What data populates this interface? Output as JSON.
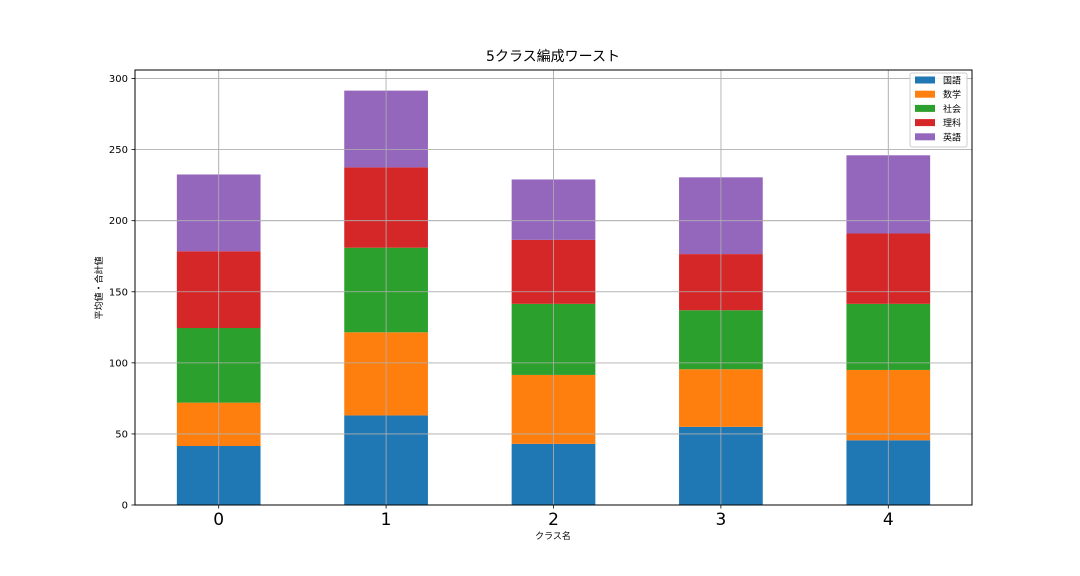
{
  "chart_data": {
    "type": "bar",
    "stacked": true,
    "title": "5クラス編成ワースト",
    "xlabel": "クラス名",
    "ylabel": "平均値・合計値",
    "categories": [
      "0",
      "1",
      "2",
      "3",
      "4"
    ],
    "ylim": [
      0,
      306
    ],
    "yticks": [
      0,
      50,
      100,
      150,
      200,
      250,
      300
    ],
    "grid": true,
    "legend_position": "top-right",
    "series": [
      {
        "name": "国語",
        "color": "#1f77b4",
        "values": [
          41.5,
          63,
          43,
          55,
          45.5
        ]
      },
      {
        "name": "数学",
        "color": "#ff7f0e",
        "values": [
          30.5,
          58.5,
          48.5,
          40.5,
          49.5
        ]
      },
      {
        "name": "社会",
        "color": "#2ca02c",
        "values": [
          52.5,
          59.5,
          50,
          41.5,
          46.5
        ]
      },
      {
        "name": "理科",
        "color": "#d62728",
        "values": [
          54,
          56.5,
          45,
          39.5,
          49.5
        ]
      },
      {
        "name": "英語",
        "color": "#9467bd",
        "values": [
          54,
          54,
          42.5,
          54,
          55
        ]
      }
    ]
  }
}
